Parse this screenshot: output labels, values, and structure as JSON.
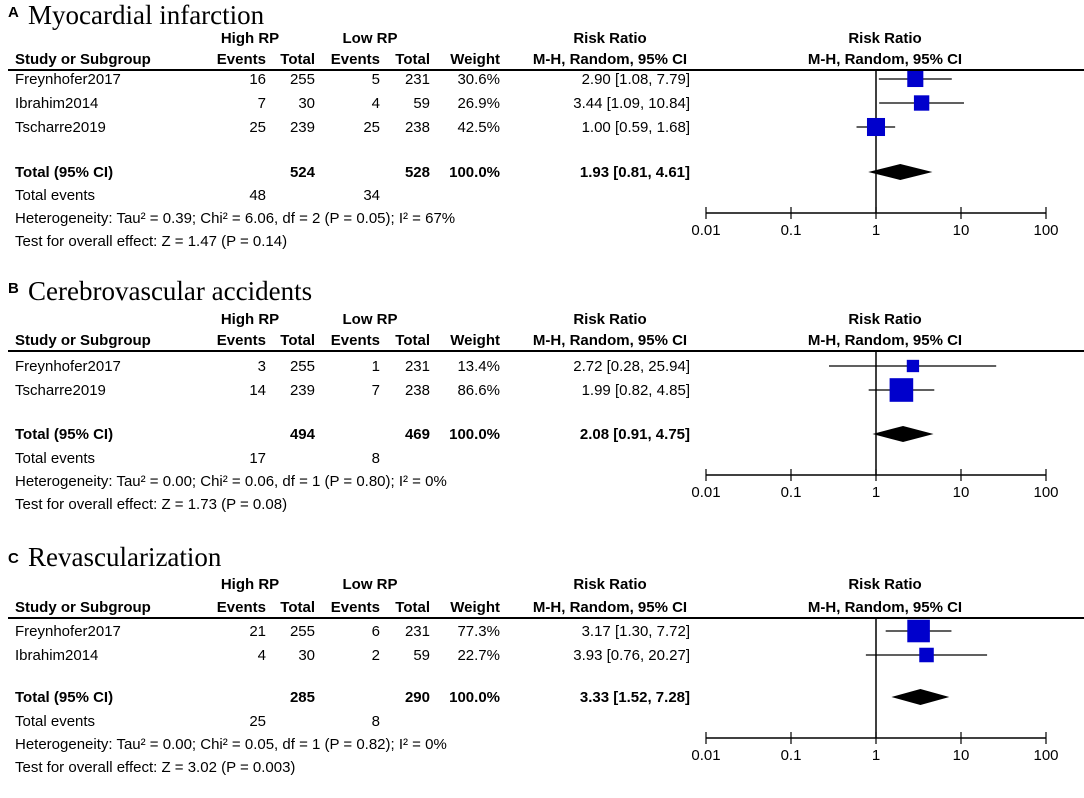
{
  "chart_data": [
    {
      "type": "forest",
      "letter": "A",
      "title": "Myocardial infarction",
      "header": {
        "group1": "High RP",
        "group2": "Low RP",
        "study_col": "Study or Subgroup",
        "events": "Events",
        "total": "Total",
        "weight": "Weight",
        "rr_top": "Risk Ratio",
        "rr_sub": "M-H, Random, 95% CI"
      },
      "studies": [
        {
          "name": "Freynhofer2017",
          "e1": "16",
          "n1": "255",
          "e2": "5",
          "n2": "231",
          "weight": "30.6%",
          "ci_text": "2.90 [1.08, 7.79]",
          "rr": 2.9,
          "lo": 1.08,
          "hi": 7.79,
          "w": 30.6
        },
        {
          "name": "Ibrahim2014",
          "e1": "7",
          "n1": "30",
          "e2": "4",
          "n2": "59",
          "weight": "26.9%",
          "ci_text": "3.44 [1.09, 10.84]",
          "rr": 3.44,
          "lo": 1.09,
          "hi": 10.84,
          "w": 26.9
        },
        {
          "name": "Tscharre2019",
          "e1": "25",
          "n1": "239",
          "e2": "25",
          "n2": "238",
          "weight": "42.5%",
          "ci_text": "1.00 [0.59, 1.68]",
          "rr": 1.0,
          "lo": 0.59,
          "hi": 1.68,
          "w": 42.5
        }
      ],
      "total": {
        "label": "Total (95% CI)",
        "n1": "524",
        "n2": "528",
        "weight": "100.0%",
        "ci_text": "1.93 [0.81, 4.61]",
        "rr": 1.93,
        "lo": 0.81,
        "hi": 4.61
      },
      "events": {
        "label": "Total events",
        "e1": "48",
        "e2": "34"
      },
      "heterogeneity": "Heterogeneity: Tau² = 0.39; Chi² = 6.06, df = 2 (P = 0.05); I² = 67%",
      "overall": "Test for overall effect: Z = 1.47 (P = 0.14)",
      "x_scale": "log",
      "xlim": [
        0.01,
        100
      ],
      "ticks": [
        {
          "value": 0.01,
          "label": "0.01"
        },
        {
          "value": 0.1,
          "label": "0.1"
        },
        {
          "value": 1,
          "label": "1"
        },
        {
          "value": 10,
          "label": "10"
        },
        {
          "value": 100,
          "label": "100"
        }
      ]
    },
    {
      "type": "forest",
      "letter": "B",
      "title": "Cerebrovascular accidents",
      "header": {
        "group1": "High RP",
        "group2": "Low RP",
        "study_col": "Study or Subgroup",
        "events": "Events",
        "total": "Total",
        "weight": "Weight",
        "rr_top": "Risk Ratio",
        "rr_sub": "M-H, Random, 95% CI"
      },
      "studies": [
        {
          "name": "Freynhofer2017",
          "e1": "3",
          "n1": "255",
          "e2": "1",
          "n2": "231",
          "weight": "13.4%",
          "ci_text": "2.72 [0.28, 25.94]",
          "rr": 2.72,
          "lo": 0.28,
          "hi": 25.94,
          "w": 13.4
        },
        {
          "name": "Tscharre2019",
          "e1": "14",
          "n1": "239",
          "e2": "7",
          "n2": "238",
          "weight": "86.6%",
          "ci_text": "1.99 [0.82, 4.85]",
          "rr": 1.99,
          "lo": 0.82,
          "hi": 4.85,
          "w": 86.6
        }
      ],
      "total": {
        "label": "Total (95% CI)",
        "n1": "494",
        "n2": "469",
        "weight": "100.0%",
        "ci_text": "2.08 [0.91, 4.75]",
        "rr": 2.08,
        "lo": 0.91,
        "hi": 4.75
      },
      "events": {
        "label": "Total events",
        "e1": "17",
        "e2": "8"
      },
      "heterogeneity": "Heterogeneity: Tau² = 0.00; Chi² = 0.06, df = 1 (P = 0.80); I² = 0%",
      "overall": "Test for overall effect: Z = 1.73 (P = 0.08)",
      "x_scale": "log",
      "xlim": [
        0.01,
        100
      ],
      "ticks": [
        {
          "value": 0.01,
          "label": "0.01"
        },
        {
          "value": 0.1,
          "label": "0.1"
        },
        {
          "value": 1,
          "label": "1"
        },
        {
          "value": 10,
          "label": "10"
        },
        {
          "value": 100,
          "label": "100"
        }
      ]
    },
    {
      "type": "forest",
      "letter": "C",
      "title": "Revascularization",
      "header": {
        "group1": "High RP",
        "group2": "Low RP",
        "study_col": "Study or Subgroup",
        "events": "Events",
        "total": "Total",
        "weight": "Weight",
        "rr_top": "Risk Ratio",
        "rr_sub": "M-H, Random, 95% CI"
      },
      "studies": [
        {
          "name": "Freynhofer2017",
          "e1": "21",
          "n1": "255",
          "e2": "6",
          "n2": "231",
          "weight": "77.3%",
          "ci_text": "3.17 [1.30, 7.72]",
          "rr": 3.17,
          "lo": 1.3,
          "hi": 7.72,
          "w": 77.3
        },
        {
          "name": "Ibrahim2014",
          "e1": "4",
          "n1": "30",
          "e2": "2",
          "n2": "59",
          "weight": "22.7%",
          "ci_text": "3.93 [0.76, 20.27]",
          "rr": 3.93,
          "lo": 0.76,
          "hi": 20.27,
          "w": 22.7
        }
      ],
      "total": {
        "label": "Total (95% CI)",
        "n1": "285",
        "n2": "290",
        "weight": "100.0%",
        "ci_text": "3.33 [1.52, 7.28]",
        "rr": 3.33,
        "lo": 1.52,
        "hi": 7.28
      },
      "events": {
        "label": "Total events",
        "e1": "25",
        "e2": "8"
      },
      "heterogeneity": "Heterogeneity: Tau² = 0.00; Chi² = 0.05, df = 1 (P = 0.82); I² = 0%",
      "overall": "Test for overall effect: Z = 3.02 (P = 0.003)",
      "x_scale": "log",
      "xlim": [
        0.01,
        100
      ],
      "ticks": [
        {
          "value": 0.01,
          "label": "0.01"
        },
        {
          "value": 0.1,
          "label": "0.1"
        },
        {
          "value": 1,
          "label": "1"
        },
        {
          "value": 10,
          "label": "10"
        },
        {
          "value": 100,
          "label": "100"
        }
      ]
    }
  ],
  "colors": {
    "marker": "#0000cc",
    "line": "#000000",
    "diamond": "#000000"
  }
}
